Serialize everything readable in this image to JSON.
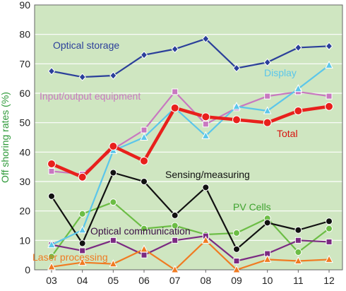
{
  "chart_data": {
    "type": "line",
    "ylabel": "Off shoring rates (%)",
    "xlabel": "",
    "ylim": [
      0,
      90
    ],
    "yticks": [
      "0",
      "10",
      "20",
      "30",
      "40",
      "50",
      "60",
      "70",
      "80",
      "90"
    ],
    "categories": [
      "03",
      "04",
      "05",
      "06",
      "07",
      "08",
      "09",
      "10",
      "11",
      "12"
    ],
    "grid": true,
    "background_color": "#cfe6c1",
    "grid_color": "#ffffff",
    "series": [
      {
        "name": "Optical storage",
        "color": "#2b3f9a",
        "marker": "diamond",
        "values": [
          67.5,
          65.5,
          66,
          73,
          75,
          78.5,
          68.5,
          70.5,
          75.5,
          76
        ]
      },
      {
        "name": "Display",
        "color": "#5bc6ea",
        "marker": "triangle",
        "values": [
          8.5,
          13.5,
          40.5,
          45,
          55,
          45.5,
          55.5,
          54,
          61.5,
          69.5
        ]
      },
      {
        "name": "Input/output equipment",
        "color": "#c878c0",
        "marker": "square",
        "values": [
          33.5,
          32.5,
          41,
          47.5,
          60.5,
          49.5,
          55,
          59,
          60.5,
          59
        ]
      },
      {
        "name": "Total",
        "color": "#e8201c",
        "marker": "circle",
        "values": [
          36,
          31.5,
          42,
          37,
          55,
          52,
          51,
          50,
          54,
          55.5
        ]
      },
      {
        "name": "Sensing/measuring",
        "color": "#111111",
        "marker": "circle",
        "values": [
          25,
          9,
          33,
          30,
          18.5,
          28,
          7,
          16,
          13.5,
          16.5
        ]
      },
      {
        "name": "PV Cells",
        "color": "#6cbd45",
        "marker": "circle",
        "values": [
          4.5,
          19,
          23,
          14,
          15,
          12,
          12.5,
          17.5,
          6,
          14
        ]
      },
      {
        "name": "Optical communication",
        "color": "#7b2a82",
        "marker": "square",
        "values": [
          8.5,
          6.5,
          10,
          5,
          10,
          11.5,
          3,
          5.5,
          10,
          9.5
        ]
      },
      {
        "name": "Laser processing",
        "color": "#f07b22",
        "marker": "triangle",
        "values": [
          1,
          2.5,
          2,
          7,
          0,
          10,
          0,
          3.5,
          3,
          3.5
        ]
      }
    ]
  }
}
